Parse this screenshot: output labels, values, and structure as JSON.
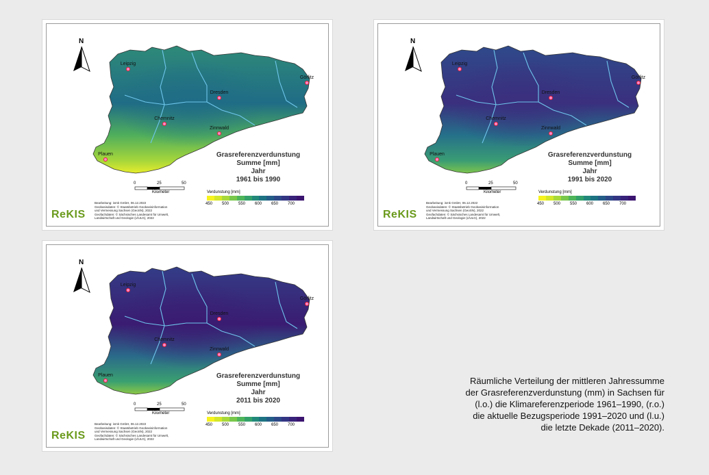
{
  "caption_lines": [
    "Räumliche Verteilung der mittleren Jahressumme",
    "der Grasreferenzverdunstung  (mm) in Sachsen für",
    "(l.o.) die Klimareferenzperiode 1961–1990, (r.o.)",
    "die aktuelle  Bezugsperiode 1991–2020 und (l.u.)",
    "die letzte  Dekade (2011–2020)."
  ],
  "north_label": "N",
  "cities": [
    "Leipzig",
    "Dresden",
    "Görlitz",
    "Chemnitz",
    "Zinnwald",
    "Plauen"
  ],
  "scale": {
    "ticks": [
      "0",
      "25",
      "50"
    ],
    "unit": "Kilometer"
  },
  "legend": {
    "title": "Verdunstung [mm]",
    "ticks": [
      "450",
      "500",
      "550",
      "600",
      "650",
      "700"
    ],
    "colors": [
      "#f6f31e",
      "#d4e72a",
      "#a8d93a",
      "#79c84b",
      "#4fb55a",
      "#34a06a",
      "#22897a",
      "#1d7382",
      "#245d87",
      "#2d4887",
      "#333583",
      "#38237a",
      "#3b1470"
    ]
  },
  "credits": [
    "Bearbeitung: ismk GmbH, 06.12.2022",
    "Geobasisdaten: © Staatsbetrieb Geobasisinformation",
    "und Vermessung Sachsen (GeoSN), 2022",
    "Geofachdaten: © Sächsisches Landesamt für Umwelt,",
    "Landwirtschaft und Geologie (LfULG), 2022"
  ],
  "logo": "ReKIS",
  "maps": [
    {
      "title": [
        "Grasreferenzverdunstung",
        "Summe [mm]",
        "Jahr",
        "1961 bis 1990"
      ],
      "fill_colors": [
        "#2f8a78",
        "#1f6c86",
        "#4fae5c",
        "#a5d63b",
        "#e6ec2c"
      ]
    },
    {
      "title": [
        "Grasreferenzverdunstung",
        "Summe [mm]",
        "Jahr",
        "1991 bis 2020"
      ],
      "fill_colors": [
        "#2f4a8a",
        "#3a2f7e",
        "#25708a",
        "#3a9c74",
        "#7cc44c"
      ]
    },
    {
      "title": [
        "Grasreferenzverdunstung",
        "Summe [mm]",
        "Jahr",
        "2011 bis 2020"
      ],
      "fill_colors": [
        "#343d87",
        "#3a1c72",
        "#2a6a8a",
        "#3aa070",
        "#8cc845"
      ]
    }
  ]
}
